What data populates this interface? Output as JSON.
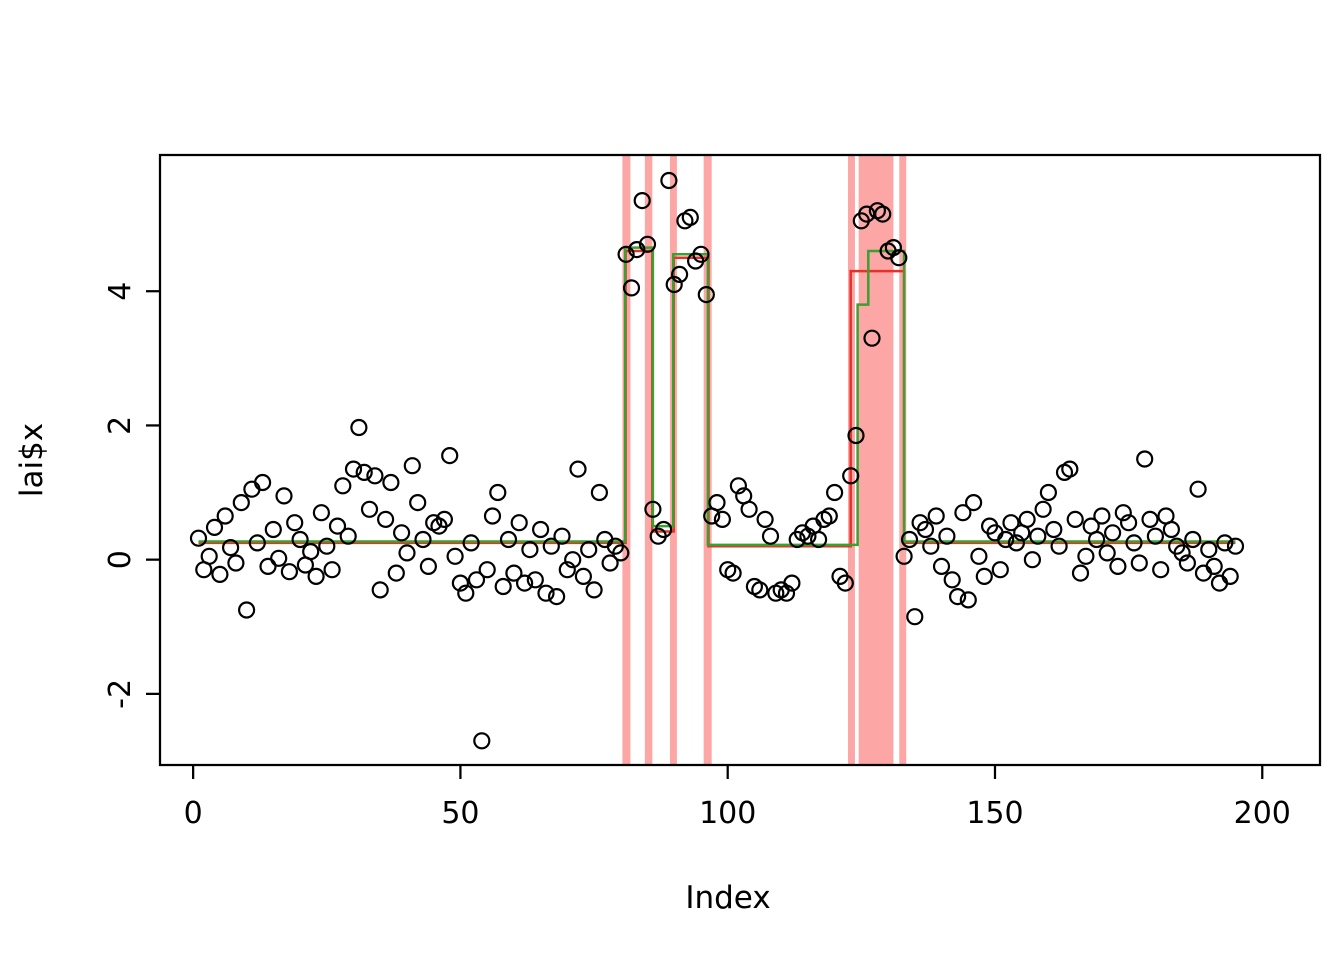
{
  "chart_data": {
    "type": "scatter",
    "title": "",
    "xlabel": "Index",
    "ylabel": "lai$x",
    "x_ticks": [
      0,
      50,
      100,
      150,
      200
    ],
    "y_ticks": [
      -2,
      0,
      2,
      4
    ],
    "xlim": [
      -6.2,
      210.8
    ],
    "ylim": [
      -3.06,
      6.03
    ],
    "x_start_index": 1,
    "point_color": "#000000",
    "band_color": "#fa6a6a",
    "band_opacity": 0.6,
    "green_line_color": "#3aa02f",
    "red_line_color": "#e8302a",
    "axis_color": "#000000",
    "values": [
      0.32,
      -0.15,
      0.05,
      0.48,
      -0.22,
      0.65,
      0.18,
      -0.05,
      0.85,
      -0.75,
      1.05,
      0.25,
      1.15,
      -0.1,
      0.45,
      0.02,
      0.95,
      -0.18,
      0.55,
      0.3,
      -0.08,
      0.12,
      -0.25,
      0.7,
      0.2,
      -0.15,
      0.5,
      1.1,
      0.35,
      1.35,
      1.97,
      1.3,
      0.75,
      1.25,
      -0.45,
      0.6,
      1.15,
      -0.2,
      0.4,
      0.1,
      1.4,
      0.85,
      0.3,
      -0.1,
      0.55,
      0.5,
      0.6,
      1.55,
      0.05,
      -0.35,
      -0.5,
      0.25,
      -0.3,
      -2.7,
      -0.15,
      0.65,
      1.0,
      -0.4,
      0.3,
      -0.2,
      0.55,
      -0.35,
      0.15,
      -0.3,
      0.45,
      -0.5,
      0.2,
      -0.55,
      0.35,
      -0.15,
      0.0,
      1.35,
      -0.25,
      0.15,
      -0.45,
      1.0,
      0.3,
      -0.05,
      0.2,
      0.1,
      4.55,
      4.05,
      4.62,
      5.35,
      4.7,
      0.75,
      0.35,
      0.45,
      5.65,
      4.1,
      4.25,
      5.05,
      5.1,
      4.45,
      4.55,
      3.95,
      0.65,
      0.85,
      0.6,
      -0.15,
      -0.2,
      1.1,
      0.95,
      0.75,
      -0.4,
      -0.45,
      0.6,
      0.35,
      -0.5,
      -0.45,
      -0.5,
      -0.35,
      0.3,
      0.4,
      0.35,
      0.5,
      0.3,
      0.6,
      0.65,
      1.0,
      -0.25,
      -0.35,
      1.25,
      1.85,
      5.05,
      5.15,
      3.3,
      5.2,
      5.15,
      4.6,
      4.65,
      4.5,
      0.05,
      0.3,
      -0.85,
      0.55,
      0.45,
      0.2,
      0.65,
      -0.1,
      0.35,
      -0.3,
      -0.55,
      0.7,
      -0.6,
      0.85,
      0.05,
      -0.25,
      0.5,
      0.4,
      -0.15,
      0.3,
      0.55,
      0.25,
      0.4,
      0.6,
      0.0,
      0.35,
      0.75,
      1.0,
      0.45,
      0.2,
      1.3,
      1.35,
      0.6,
      -0.2,
      0.05,
      0.5,
      0.3,
      0.65,
      0.1,
      0.4,
      -0.1,
      0.7,
      0.55,
      0.25,
      -0.05,
      1.5,
      0.6,
      0.35,
      -0.15,
      0.65,
      0.45,
      0.2,
      0.1,
      -0.05,
      0.3,
      1.05,
      -0.2,
      0.15,
      -0.1,
      -0.35,
      0.25,
      -0.25,
      0.2
    ],
    "green_segments": [
      [
        1,
        80.8,
        0.27
      ],
      [
        80.8,
        86.0,
        4.65
      ],
      [
        86.0,
        89.8,
        0.5
      ],
      [
        89.8,
        96.3,
        4.55
      ],
      [
        96.3,
        124.3,
        0.22
      ],
      [
        124.3,
        126.3,
        3.8
      ],
      [
        126.3,
        133.0,
        4.6
      ],
      [
        133.0,
        195,
        0.27
      ]
    ],
    "red_segments": [
      [
        1,
        80.9,
        0.25
      ],
      [
        80.9,
        85.9,
        4.6
      ],
      [
        85.9,
        89.9,
        0.42
      ],
      [
        89.9,
        96.4,
        4.5
      ],
      [
        96.4,
        123.0,
        0.2
      ],
      [
        123.0,
        133.0,
        4.3
      ],
      [
        133.0,
        195,
        0.25
      ]
    ],
    "bands": [
      [
        80.3,
        81.8
      ],
      [
        84.5,
        85.9
      ],
      [
        89.2,
        90.5
      ],
      [
        95.5,
        97.0
      ],
      [
        122.5,
        123.8
      ],
      [
        124.5,
        131.0
      ],
      [
        132.1,
        133.4
      ]
    ]
  }
}
